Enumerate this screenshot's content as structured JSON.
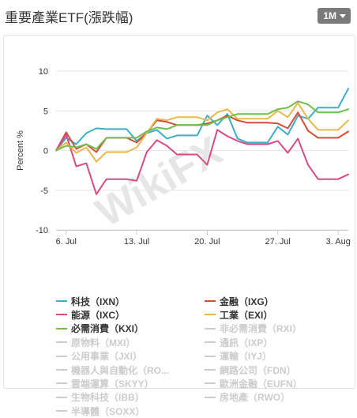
{
  "header": {
    "title": "重要產業ETF(漲跌幅)",
    "period_button": "1M"
  },
  "chart_data": {
    "type": "line",
    "ylabel": "Percent %",
    "ylim": [
      -10,
      10
    ],
    "yticks": [
      10,
      5,
      0,
      -5,
      -10
    ],
    "xtick_labels": [
      "6. Jul",
      "13. Jul",
      "20. Jul",
      "27. Jul",
      "3. Aug"
    ],
    "xtick_index": [
      1,
      8,
      15,
      22,
      28
    ],
    "n_points": 30,
    "watermark": "WikiFX",
    "series": [
      {
        "name": "科技（IXN）",
        "color": "#3ab0c8",
        "active": true,
        "values": [
          0,
          1.6,
          0.8,
          2.2,
          2.8,
          2.7,
          2.7,
          2.7,
          1.2,
          2.2,
          2.6,
          1.5,
          1.9,
          1.9,
          1.9,
          4.4,
          3.2,
          4.6,
          1.5,
          1.0,
          1.0,
          1.0,
          3.0,
          2.0,
          4.4,
          4.0,
          5.4,
          5.4,
          5.4,
          7.8
        ]
      },
      {
        "name": "金融（IXG）",
        "color": "#d84a3a",
        "active": true,
        "values": [
          0,
          2.3,
          0.2,
          0.8,
          -0.2,
          1.6,
          1.6,
          1.6,
          1.0,
          2.2,
          3.8,
          3.6,
          3.2,
          3.2,
          3.2,
          3.4,
          3.8,
          4.4,
          3.8,
          3.5,
          3.5,
          3.5,
          3.4,
          2.8,
          4.8,
          2.5,
          1.6,
          1.6,
          1.6,
          2.4
        ]
      },
      {
        "name": "能源（IXC）",
        "color": "#d64b86",
        "active": true,
        "values": [
          0,
          2.0,
          -2.0,
          -1.6,
          -5.5,
          -3.6,
          -3.6,
          -3.6,
          -3.8,
          -0.2,
          1.3,
          0.6,
          -0.5,
          -0.5,
          -0.5,
          -1.8,
          2.6,
          1.8,
          1.2,
          0.8,
          0.8,
          0.8,
          1.2,
          -0.3,
          1.5,
          -1.8,
          -3.6,
          -3.6,
          -3.6,
          -3.0
        ]
      },
      {
        "name": "工業（EXI）",
        "color": "#e8b84a",
        "active": true,
        "values": [
          0,
          1.0,
          -0.3,
          0.4,
          -1.4,
          -0.2,
          -0.2,
          -0.2,
          0.4,
          2.2,
          4.0,
          3.8,
          4.2,
          4.2,
          4.2,
          3.8,
          4.8,
          5.2,
          4.0,
          4.0,
          4.0,
          4.0,
          5.0,
          4.2,
          6.0,
          4.0,
          2.6,
          2.6,
          2.6,
          3.8
        ]
      },
      {
        "name": "必需消費（KXI）",
        "color": "#6fbf4a",
        "active": true,
        "values": [
          0,
          0.6,
          0.4,
          0.8,
          0.2,
          1.6,
          1.6,
          1.6,
          1.6,
          2.4,
          2.9,
          2.7,
          3.2,
          3.2,
          3.2,
          3.2,
          3.8,
          4.2,
          4.6,
          4.6,
          4.6,
          4.6,
          5.2,
          5.4,
          6.2,
          5.8,
          4.8,
          4.8,
          4.8,
          5.2
        ]
      }
    ],
    "legend_inactive": [
      "非必需消費（RXI）",
      "原物料（MXI）",
      "通訊（IXP）",
      "公用事業（JXI）",
      "運輸（IYJ）",
      "機器人與自動化（RO...",
      "網路公司（FDN）",
      "雲端運算（SKYY）",
      "歐洲金融（EUFN）",
      "生物科技（IBB）",
      "房地產（RWO）",
      "半導體（SOXX）"
    ],
    "legend_placement": "bottom"
  }
}
